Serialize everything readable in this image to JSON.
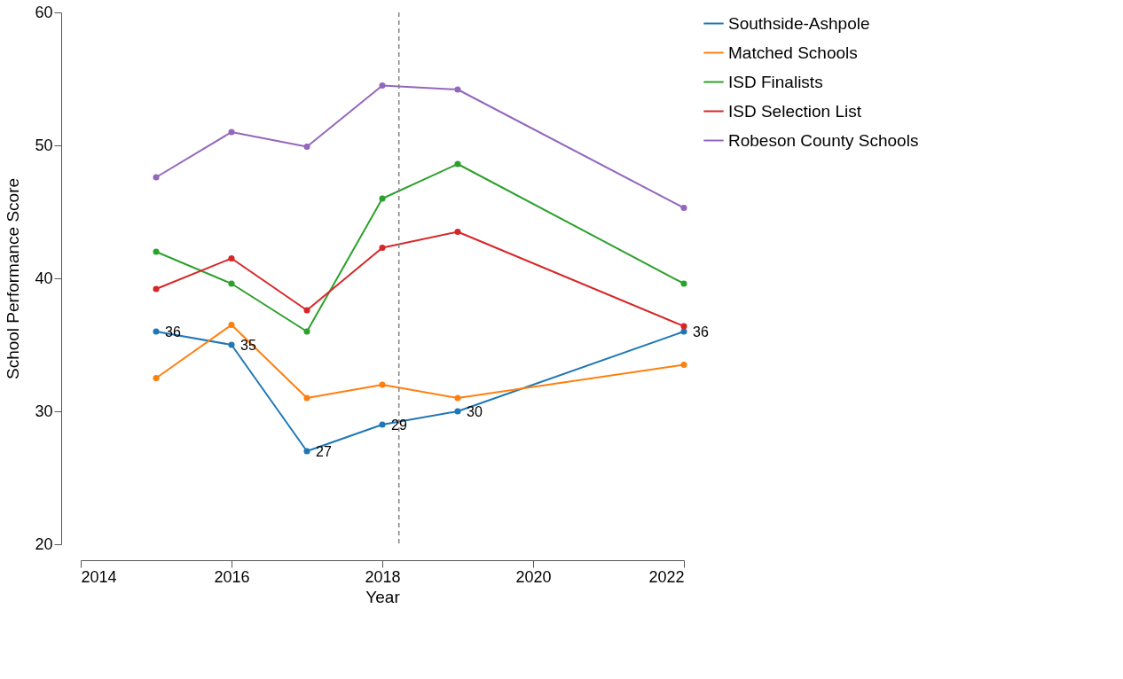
{
  "chart_data": {
    "type": "line",
    "xlabel": "Year",
    "ylabel": "School Performance Score",
    "x": [
      2015,
      2016,
      2017,
      2018,
      2019,
      2022
    ],
    "series": [
      {
        "name": "Southside-Ashpole",
        "color": "#1f77b4",
        "values": [
          36,
          35,
          27,
          29,
          30,
          36
        ],
        "value_labels": [
          "36",
          "35",
          "27",
          "29",
          "30",
          "36"
        ]
      },
      {
        "name": "Matched Schools",
        "color": "#ff7f0e",
        "values": [
          32.5,
          36.5,
          31,
          32,
          31,
          33.5
        ]
      },
      {
        "name": "ISD Finalists",
        "color": "#2ca02c",
        "values": [
          42,
          39.6,
          36,
          46,
          48.6,
          39.6
        ]
      },
      {
        "name": "ISD Selection List",
        "color": "#d62728",
        "values": [
          39.2,
          41.5,
          37.6,
          42.3,
          43.5,
          36.4
        ]
      },
      {
        "name": " Robeson County Schools",
        "color": "#9467bd",
        "values": [
          47.6,
          51,
          49.9,
          54.5,
          54.2,
          45.3
        ]
      }
    ],
    "xlim": [
      2014,
      2022
    ],
    "xticks": [
      2014,
      2016,
      2018,
      2020,
      2022
    ],
    "ylim": [
      20,
      60
    ],
    "yticks": [
      20,
      30,
      40,
      50,
      60
    ],
    "ref_lines": [
      {
        "axis": "x",
        "value": 2018.22,
        "color": "#808080",
        "line_style": "dashed"
      }
    ],
    "marker": "circle",
    "line_style": "solid",
    "grid": false,
    "legend": "right"
  }
}
